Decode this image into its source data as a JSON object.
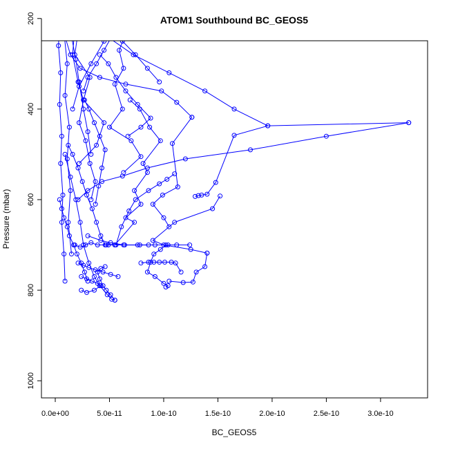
{
  "chart_data": {
    "type": "line",
    "title": "ATOM1 Southbound BC_GEOS5",
    "xlabel": "BC_GEOS5",
    "ylabel": "Pressure (mbar)",
    "xlim": [
      0,
      3.3e-10
    ],
    "ylim": [
      1050,
      150
    ],
    "y_inverted": true,
    "x_ticks": [
      0,
      5e-11,
      1e-10,
      1.5e-10,
      2e-10,
      2.5e-10,
      3e-10
    ],
    "x_tick_labels": [
      "0.0e+00",
      "5.0e-11",
      "1.0e-10",
      "1.5e-10",
      "2.0e-10",
      "2.5e-10",
      "3.0e-10"
    ],
    "y_ticks": [
      200,
      400,
      600,
      800,
      1000
    ],
    "y_tick_labels": [
      "200",
      "400",
      "600",
      "800",
      "1000"
    ],
    "grid": false,
    "legend": "none",
    "marker": "open-circle",
    "color": "#0000ff",
    "series": [
      {
        "x": [
          5e-12,
          1.2e-11,
          2.1e-11,
          1.8e-11,
          3.2e-11,
          2.6e-11,
          4.5e-11,
          3.8e-11,
          2.2e-11
        ],
        "y": [
          152,
          190,
          230,
          280,
          330,
          380,
          430,
          480,
          520
        ]
      },
      {
        "x": [
          3e-12,
          6e-12,
          9e-12,
          1.4e-11,
          2.3e-11,
          4.1e-11,
          6.5e-11,
          9.8e-11,
          1.12e-10,
          1.26e-10
        ],
        "y": [
          160,
          200,
          240,
          280,
          310,
          330,
          345,
          360,
          385,
          418
        ]
      },
      {
        "x": [
          8e-12,
          1.5e-11,
          2.9e-11,
          4.8e-11,
          7.2e-11,
          1.05e-10,
          1.38e-10,
          1.65e-10,
          1.96e-10,
          3.26e-10
        ],
        "y": [
          150,
          175,
          205,
          240,
          280,
          320,
          360,
          400,
          437,
          430
        ]
      },
      {
        "x": [
          3.26e-10,
          2.5e-10,
          1.8e-10,
          1.2e-10,
          8.5e-11,
          6.2e-11,
          4.3e-11,
          3e-11,
          2.1e-11
        ],
        "y": [
          430,
          460,
          490,
          510,
          530,
          548,
          560,
          580,
          600
        ]
      },
      {
        "x": [
          1.96e-10,
          1.65e-10,
          1.48e-10,
          1.4e-10,
          1.35e-10,
          1.32e-10,
          1.29e-10
        ],
        "y": [
          437,
          458,
          562,
          588,
          590,
          591,
          593
        ]
      },
      {
        "x": [
          1.26e-10,
          1.08e-10,
          1.13e-10,
          9.9e-11,
          9e-11,
          1e-10,
          1.05e-10
        ],
        "y": [
          418,
          476,
          572,
          590,
          610,
          640,
          660
        ]
      },
      {
        "x": [
          1.52e-10,
          1.45e-10,
          1.1e-10,
          9e-11,
          1e-10,
          1.25e-10,
          1.4e-10
        ],
        "y": [
          592,
          620,
          650,
          690,
          700,
          710,
          718
        ]
      },
      {
        "x": [
          1.4e-10,
          1.38e-10,
          1.3e-10,
          1.27e-10,
          1.18e-10,
          1.05e-10
        ],
        "y": [
          718,
          748,
          760,
          782,
          783,
          780
        ]
      },
      {
        "x": [
          1.02e-10,
          9.7e-11,
          9.1e-11,
          8.8e-11,
          8.5e-11,
          9.2e-11,
          1e-10,
          1.04e-10,
          1.02e-10
        ],
        "y": [
          700,
          710,
          720,
          738,
          760,
          770,
          785,
          790,
          793
        ]
      },
      {
        "x": [
          9e-12,
          1.4e-11,
          1.9e-11,
          2.3e-11,
          2.6e-11,
          3.1e-11,
          3.6e-11,
          4.1e-11,
          4.8e-11,
          5.2e-11,
          5.5e-11
        ],
        "y": [
          500,
          550,
          600,
          650,
          700,
          740,
          770,
          790,
          810,
          820,
          822
        ]
      },
      {
        "x": [
          5.5e-11,
          5.1e-11,
          4.7e-11,
          4.4e-11,
          4.1e-11,
          3.9e-11,
          4.2e-11,
          4.6e-11
        ],
        "y": [
          822,
          810,
          800,
          790,
          775,
          760,
          752,
          748
        ]
      },
      {
        "x": [
          6.5e-11,
          5.9e-11,
          6.3e-11,
          5.5e-11,
          6.2e-11,
          5e-11,
          7e-11,
          7.9e-11,
          6.3e-11
        ],
        "y": [
          233,
          270,
          310,
          345,
          400,
          440,
          470,
          505,
          540
        ]
      },
      {
        "x": [
          1.4e-11,
          1.8e-11,
          1.6e-11,
          2.1e-11,
          2.6e-11,
          2.2e-11,
          2.8e-11,
          3.2e-11,
          3.7e-11,
          3.3e-11
        ],
        "y": [
          160,
          220,
          280,
          340,
          380,
          430,
          470,
          520,
          560,
          600
        ]
      },
      {
        "x": [
          2e-12,
          4e-12,
          3e-12,
          5e-12,
          4e-12,
          6e-12,
          5e-12,
          7e-12,
          6e-12,
          8e-12,
          9e-12
        ],
        "y": [
          155,
          200,
          260,
          320,
          390,
          460,
          520,
          590,
          650,
          720,
          780
        ]
      },
      {
        "x": [
          1e-11,
          8e-12,
          1.1e-11,
          9e-12,
          1.3e-11,
          1.1e-11,
          1.4e-11,
          1.2e-11,
          1.5e-11
        ],
        "y": [
          170,
          230,
          300,
          370,
          440,
          510,
          580,
          650,
          720
        ]
      },
      {
        "x": [
          4.1e-11,
          4.9e-11,
          5.6e-11,
          6.5e-11,
          7.6e-11,
          8.8e-11,
          7.9e-11,
          6.7e-11
        ],
        "y": [
          280,
          300,
          330,
          360,
          390,
          420,
          440,
          460
        ]
      },
      {
        "x": [
          6.9e-11,
          7.8e-11,
          8.7e-11,
          9.7e-11,
          8.1e-11,
          8.5e-11,
          7.3e-11,
          7.9e-11,
          6.5e-11,
          7.3e-11,
          5.5e-11
        ],
        "y": [
          380,
          400,
          440,
          470,
          520,
          540,
          580,
          610,
          640,
          650,
          700
        ]
      },
      {
        "x": [
          1.1e-10,
          1.03e-10,
          9.6e-11,
          8.6e-11,
          7.4e-11,
          6.8e-11,
          6.1e-11,
          5.6e-11
        ],
        "y": [
          543,
          555,
          565,
          580,
          600,
          625,
          660,
          700
        ]
      },
      {
        "x": [
          3e-11,
          4.2e-11,
          5.1e-11,
          6.3e-11,
          7.8e-11,
          9.2e-11,
          1.04e-10,
          1.12e-10,
          1.24e-10
        ],
        "y": [
          680,
          690,
          695,
          700,
          700,
          700,
          700,
          700,
          700
        ]
      },
      {
        "x": [
          1.8e-11,
          2.3e-11,
          2.8e-11,
          3.3e-11,
          3.9e-11,
          4.7e-11,
          5.5e-11,
          6.4e-11,
          7.6e-11,
          8.6e-11
        ],
        "y": [
          700,
          705,
          700,
          695,
          700,
          700,
          700,
          700,
          700,
          700
        ]
      },
      {
        "x": [
          2.1e-11,
          2.6e-11,
          3.1e-11,
          3.7e-11,
          4.4e-11,
          5.1e-11,
          5.8e-11
        ],
        "y": [
          740,
          745,
          750,
          755,
          760,
          765,
          770
        ]
      },
      {
        "x": [
          7.9e-11,
          8.6e-11,
          9.1e-11,
          9.6e-11,
          1.01e-10,
          1.07e-10,
          1.11e-10,
          1.16e-10
        ],
        "y": [
          740,
          738,
          738,
          738,
          738,
          738,
          740,
          760
        ]
      },
      {
        "x": [
          2.4e-11,
          2.9e-11,
          3.4e-11,
          3.9e-11,
          4.2e-11,
          3.6e-11,
          2.9e-11,
          2.4e-11
        ],
        "y": [
          770,
          775,
          780,
          785,
          790,
          800,
          805,
          800
        ]
      },
      {
        "x": [
          6.5e-12,
          1e-11,
          1.5e-11,
          1.9e-11,
          2.2e-11,
          2.6e-11,
          3e-11,
          3.3e-11
        ],
        "y": [
          150,
          190,
          240,
          290,
          340,
          400,
          450,
          500
        ]
      },
      {
        "x": [
          1.3e-11,
          2.2e-11,
          3.6e-11,
          5.2e-11,
          4.5e-11,
          3.8e-11,
          3e-11,
          2.6e-11
        ],
        "y": [
          150,
          175,
          210,
          240,
          270,
          300,
          330,
          360
        ]
      },
      {
        "x": [
          2.3e-11,
          2.8e-11,
          3.5e-11,
          4.3e-11,
          5.1e-11,
          6.2e-11,
          7.4e-11,
          8.5e-11,
          9.6e-11
        ],
        "y": [
          150,
          160,
          180,
          200,
          225,
          250,
          280,
          310,
          340
        ]
      },
      {
        "x": [
          7.4e-11,
          6e-11,
          4.5e-11,
          3.3e-11,
          2.2e-11,
          1.6e-11
        ],
        "y": [
          150,
          200,
          250,
          300,
          350,
          400
        ]
      },
      {
        "x": [
          4e-12,
          6e-12,
          8e-12,
          1.1e-11,
          1.3e-11,
          1.7e-11,
          2e-11,
          2.4e-11,
          2.7e-11,
          3e-11
        ],
        "y": [
          600,
          620,
          640,
          660,
          680,
          700,
          720,
          740,
          760,
          780
        ]
      },
      {
        "x": [
          1.2e-11,
          1.6e-11,
          2.1e-11,
          2.5e-11,
          2.9e-11,
          3.4e-11,
          3.8e-11,
          4.2e-11,
          4.6e-11,
          4.9e-11
        ],
        "y": [
          480,
          500,
          530,
          560,
          590,
          620,
          650,
          680,
          700,
          700
        ]
      },
      {
        "x": [
          2.7e-11,
          3.1e-11,
          3.6e-11,
          4.1e-11,
          4.6e-11,
          4.3e-11,
          4e-11,
          3.7e-11
        ],
        "y": [
          380,
          400,
          430,
          460,
          490,
          530,
          570,
          610
        ]
      }
    ]
  }
}
